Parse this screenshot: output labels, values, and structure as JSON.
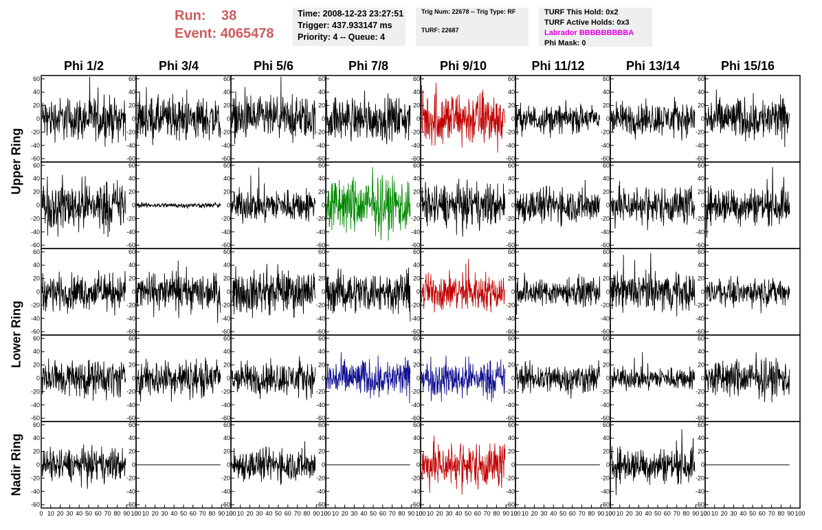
{
  "header": {
    "run_label": "Run:",
    "run_value": "38",
    "event_label": "Event:",
    "event_value": "4065478",
    "time_line": "Time: 2008-12-23 23:27:51",
    "trigger_line": "Trigger: 437.933147 ms",
    "priority_line": "Priority: 4 -- Queue: 4",
    "trig_line": "Trig Num: 22678 -- Trig Type: RF",
    "turf_line": "TURF: 22687",
    "hold_line": "TURF This Hold: 0x2",
    "active_line": "TURF Active Holds: 0x3",
    "labrador_line": "Labrador BBBBBBBBBA",
    "phimask_line": "Phi Mask: 0"
  },
  "chart_data": {
    "type": "line",
    "columns": [
      "Phi 1/2",
      "Phi 3/4",
      "Phi 5/6",
      "Phi 7/8",
      "Phi 9/10",
      "Phi 11/12",
      "Phi 13/14",
      "Phi 15/16"
    ],
    "rows": [
      "Upper Ring",
      "Lower Ring",
      "Nadir Ring"
    ],
    "panel_rows": 5,
    "xlim": [
      0,
      100
    ],
    "ylim": [
      -65,
      65
    ],
    "x_ticks": [
      0,
      10,
      20,
      30,
      40,
      50,
      60,
      70,
      80,
      90,
      100
    ],
    "x_tick_labels": [
      "0",
      "10",
      "20",
      "30",
      "40",
      "50",
      "60",
      "70",
      "80",
      "90",
      "100"
    ],
    "y_ticks": [
      -60,
      -40,
      -20,
      0,
      20,
      40,
      60
    ],
    "y_tick_labels": [
      "-60",
      "-40",
      "-20",
      "0",
      "20",
      "40",
      "60"
    ],
    "colors": {
      "default": "#000000",
      "red": "#c00000",
      "green": "#008800",
      "blue": "#101090"
    },
    "panels": [
      [
        {
          "amp": 17,
          "color": "default"
        },
        {
          "amp": 17,
          "color": "default"
        },
        {
          "amp": 17,
          "color": "default"
        },
        {
          "amp": 17,
          "color": "default"
        },
        {
          "amp": 22,
          "color": "red"
        },
        {
          "amp": 11,
          "color": "default"
        },
        {
          "amp": 13,
          "color": "default"
        },
        {
          "amp": 17,
          "color": "default"
        }
      ],
      [
        {
          "amp": 20,
          "color": "default"
        },
        {
          "amp": 2,
          "color": "default"
        },
        {
          "amp": 13,
          "color": "default"
        },
        {
          "amp": 22,
          "color": "green"
        },
        {
          "amp": 17,
          "color": "default"
        },
        {
          "amp": 14,
          "color": "default"
        },
        {
          "amp": 15,
          "color": "default"
        },
        {
          "amp": 15,
          "color": "default"
        }
      ],
      [
        {
          "amp": 14,
          "color": "default"
        },
        {
          "amp": 15,
          "color": "default"
        },
        {
          "amp": 17,
          "color": "default"
        },
        {
          "amp": 16,
          "color": "default"
        },
        {
          "amp": 15,
          "color": "red"
        },
        {
          "amp": 11,
          "color": "default"
        },
        {
          "amp": 15,
          "color": "default"
        },
        {
          "amp": 10,
          "color": "default"
        }
      ],
      [
        {
          "amp": 15,
          "color": "default"
        },
        {
          "amp": 15,
          "color": "default"
        },
        {
          "amp": 13,
          "color": "default"
        },
        {
          "amp": 15,
          "color": "blue"
        },
        {
          "amp": 15,
          "color": "blue"
        },
        {
          "amp": 12,
          "color": "default"
        },
        {
          "amp": 9,
          "color": "default"
        },
        {
          "amp": 15,
          "color": "default"
        }
      ],
      [
        {
          "amp": 13,
          "color": "default"
        },
        {
          "amp": 0,
          "color": "default"
        },
        {
          "amp": 13,
          "color": "default"
        },
        {
          "amp": 0,
          "color": "default"
        },
        {
          "amp": 18,
          "color": "red"
        },
        {
          "amp": 0,
          "color": "default"
        },
        {
          "amp": 14,
          "color": "default"
        },
        {
          "amp": 0,
          "color": "default"
        }
      ]
    ]
  }
}
